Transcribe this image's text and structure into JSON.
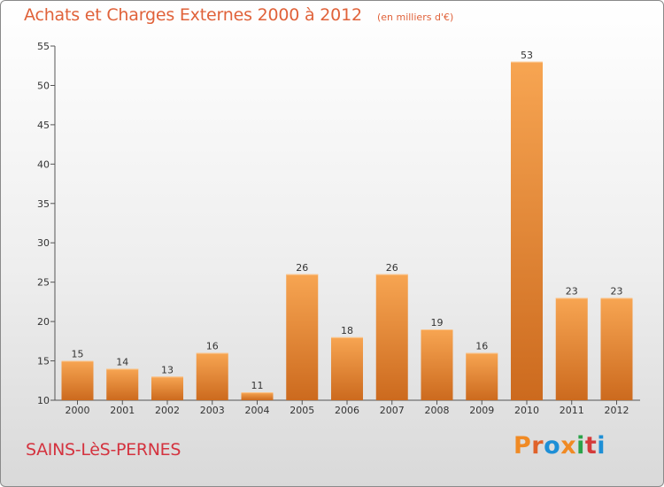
{
  "header": {
    "title": "Achats et Charges Externes 2000 à 2012",
    "subtitle": "(en milliers d'€)"
  },
  "footer": {
    "place": "SAINS-LèS-PERNES",
    "logo_text": "Proxiti",
    "logo_colors": [
      "#f08a24",
      "#e0622a",
      "#1e8fd6",
      "#f08a24",
      "#2aa34a",
      "#d43b3b",
      "#1e8fd6"
    ]
  },
  "chart_data": {
    "type": "bar",
    "categories": [
      "2000",
      "2001",
      "2002",
      "2003",
      "2004",
      "2005",
      "2006",
      "2007",
      "2008",
      "2009",
      "2010",
      "2011",
      "2012"
    ],
    "values": [
      15,
      14,
      13,
      16,
      11,
      26,
      18,
      26,
      19,
      16,
      53,
      23,
      23
    ],
    "title": "Achats et Charges Externes 2000 à 2012",
    "subtitle": "(en milliers d'€)",
    "ylim": [
      10,
      55
    ],
    "yticks": [
      10,
      15,
      20,
      25,
      30,
      35,
      40,
      45,
      50,
      55
    ],
    "grid": false,
    "bar_color": "#f0923a",
    "bar_color_dark": "#c9661b"
  }
}
